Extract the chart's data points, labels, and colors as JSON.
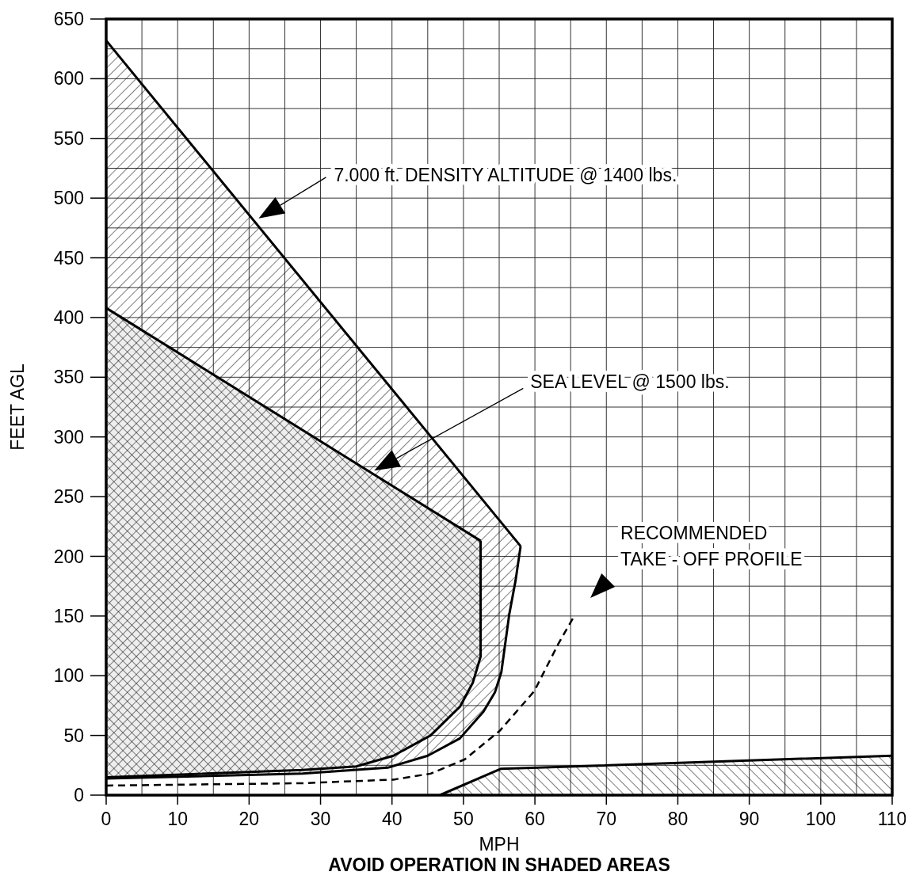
{
  "chart_data": {
    "type": "line",
    "xlabel": "MPH",
    "ylabel": "FEET AGL",
    "xlim": [
      0,
      110
    ],
    "ylim": [
      0,
      650
    ],
    "xticks": [
      0,
      {
        "value": 5,
        "label": null
      },
      10,
      {
        "value": 15,
        "label": null
      },
      20,
      {
        "value": 25,
        "label": null
      },
      30,
      {
        "value": 35,
        "label": null
      },
      40,
      {
        "value": 45,
        "label": null
      },
      50,
      {
        "value": 55,
        "label": null
      },
      60,
      {
        "value": 65,
        "label": null
      },
      70,
      {
        "value": 75,
        "label": null
      },
      80,
      {
        "value": 85,
        "label": null
      },
      90,
      {
        "value": 95,
        "label": null
      },
      100,
      {
        "value": 105,
        "label": null
      },
      110
    ],
    "yticks": [
      0,
      {
        "value": 25,
        "label": null
      },
      50,
      {
        "value": 75,
        "label": null
      },
      100,
      {
        "value": 125,
        "label": null
      },
      150,
      {
        "value": 175,
        "label": null
      },
      200,
      {
        "value": 225,
        "label": null
      },
      250,
      {
        "value": 275,
        "label": null
      },
      300,
      {
        "value": 325,
        "label": null
      },
      350,
      {
        "value": 375,
        "label": null
      },
      400,
      {
        "value": 425,
        "label": null
      },
      450,
      {
        "value": 475,
        "label": null
      },
      500,
      {
        "value": 525,
        "label": null
      },
      550,
      {
        "value": 575,
        "label": null
      },
      600,
      {
        "value": 625,
        "label": null
      },
      650
    ],
    "grid": true,
    "series": [
      {
        "color": "#000000",
        "x": [
          0,
          58
        ],
        "values": [
          632,
          208.5
        ]
      },
      {
        "color": "#000000",
        "x": [
          0,
          27.5,
          39.4,
          45,
          49.5,
          52.8,
          54.4,
          55.3,
          56.4,
          57.3,
          58
        ],
        "values": [
          14,
          18,
          23,
          33,
          47.5,
          70,
          86,
          103,
          151,
          180,
          208.5
        ]
      },
      {
        "color": "#000000",
        "x": [
          0,
          52.4
        ],
        "values": [
          408,
          213
        ]
      },
      {
        "color": "#000000",
        "x": [
          0,
          27.5,
          35,
          40.2,
          45.4,
          49.5,
          51.3,
          52.4,
          52.4
        ],
        "values": [
          15,
          21,
          24,
          33,
          50,
          74,
          94,
          116,
          213
        ]
      },
      {
        "type": "area",
        "color": "#000000",
        "x": [
          46.7,
          55.2,
          110
        ],
        "values": [
          0,
          22,
          33
        ]
      },
      {
        "type": "line",
        "color": "#000000",
        "line_style": "dashed",
        "x": [
          0,
          27.5,
          40.2,
          45.4,
          50.2,
          55.1,
          59.9,
          63.3,
          65.5
        ],
        "values": [
          8,
          10,
          13,
          18,
          30,
          54,
          87,
          127,
          150
        ]
      }
    ],
    "annotations": [
      "7.000 ft. DENSITY ALTITUDE @ 1400 lbs.",
      "SEA LEVEL @ 1500 lbs.",
      "RECOMMENDED\nTAKE - OFF PROFILE",
      "AVOID OPERATION IN SHADED AREAS"
    ]
  }
}
